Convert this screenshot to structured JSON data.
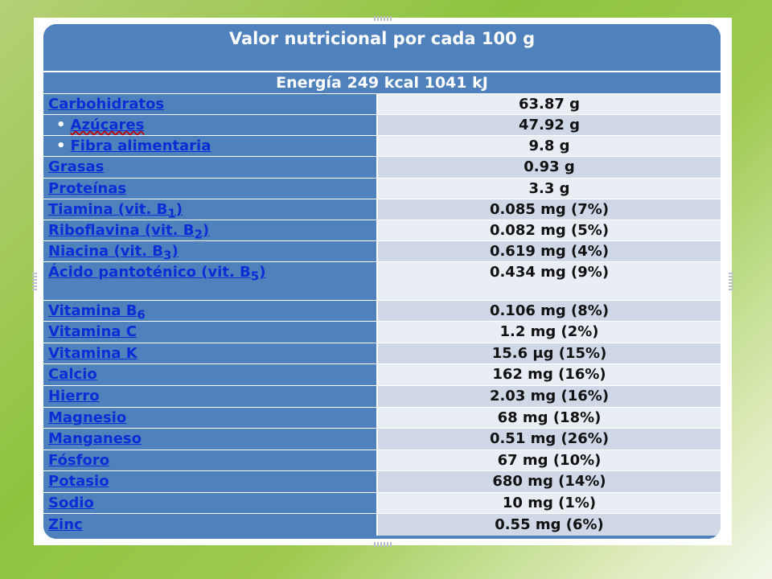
{
  "table": {
    "title": "Valor nutricional por cada 100 g",
    "energy": "Energía 249 kcal 1041 kJ",
    "rows": [
      {
        "name": "Carbohidratos",
        "value": "63.87 g"
      },
      {
        "name": "Azúcares",
        "value": "47.92 g"
      },
      {
        "name": "Fibra alimentaria",
        "value": "9.8 g"
      },
      {
        "name": "Grasas",
        "value": "0.93 g"
      },
      {
        "name": "Proteínas",
        "value": "3.3 g"
      },
      {
        "name": "Tiamina (vit. B",
        "sub": "1",
        "suffix": ")",
        "value": "0.085 mg (7%)"
      },
      {
        "name": "Riboflavina (vit. B",
        "sub": "2",
        "suffix": ")",
        "value": "0.082 mg (5%)"
      },
      {
        "name": "Niacina (vit. B",
        "sub": "3",
        "suffix": ")",
        "value": "0.619 mg (4%)"
      },
      {
        "name": "Ácido pantoténico (vit. B",
        "sub": "5",
        "suffix": ")",
        "value": "0.434 mg (9%)"
      },
      {
        "name": "Vitamina B",
        "sub": "6",
        "value": "0.106 mg (8%)"
      },
      {
        "name": "Vitamina C",
        "value": "1.2 mg (2%)"
      },
      {
        "name": "Vitamina K",
        "value": "15.6 μg (15%)"
      },
      {
        "name": "Calcio",
        "value": "162 mg (16%)"
      },
      {
        "name": "Hierro",
        "value": "2.03 mg (16%)"
      },
      {
        "name": "Magnesio",
        "value": "68 mg (18%)"
      },
      {
        "name": "Manganeso",
        "value": "0.51 mg (26%)"
      },
      {
        "name": "Fósforo",
        "value": "67 mg (10%)"
      },
      {
        "name": "Potasio",
        "value": "680 mg (14%)"
      },
      {
        "name": "Sodio",
        "value": "10 mg (1%)"
      },
      {
        "name": "Zinc",
        "value": "0.55 mg (6%)"
      }
    ]
  },
  "colors": {
    "header_blue": "#4f81bd",
    "link_blue": "#0b2dd6",
    "row_light": "#e9edf4",
    "row_dark": "#d0d8e8"
  }
}
